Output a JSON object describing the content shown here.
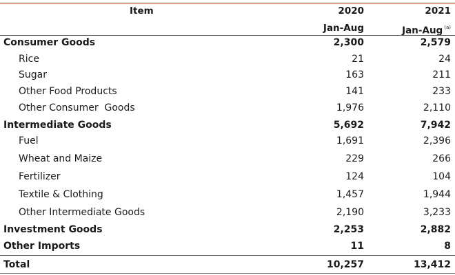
{
  "header": {
    "item_label": "Item",
    "col1_year": "2020",
    "col2_year": "2021",
    "col1_period": "Jan-Aug",
    "col2_period": "Jan-Aug",
    "col2_note": "(a)"
  },
  "rows": [
    {
      "label": "Consumer Goods",
      "v2020": "2,300",
      "v2021": "2,579",
      "bold": true
    },
    {
      "label": "Rice",
      "v2020": "21",
      "v2021": "24",
      "bold": false
    },
    {
      "label": "Sugar",
      "v2020": "163",
      "v2021": "211",
      "bold": false
    },
    {
      "label": "Other Food Products",
      "v2020": "141",
      "v2021": "233",
      "bold": false
    },
    {
      "label": "Other Consumer  Goods",
      "v2020": "1,976",
      "v2021": "2,110",
      "bold": false
    },
    {
      "label": "Intermediate Goods",
      "v2020": "5,692",
      "v2021": "7,942",
      "bold": true
    },
    {
      "label": "Fuel",
      "v2020": "1,691",
      "v2021": "2,396",
      "bold": false
    },
    {
      "label": "Wheat and Maize",
      "v2020": "229",
      "v2021": "266",
      "bold": false
    },
    {
      "label": "Fertilizer",
      "v2020": "124",
      "v2021": "104",
      "bold": false
    },
    {
      "label": "Textile & Clothing",
      "v2020": "1,457",
      "v2021": "1,944",
      "bold": false
    },
    {
      "label": "Other Intermediate Goods",
      "v2020": "2,190",
      "v2021": "3,233",
      "bold": false
    },
    {
      "label": "Investment Goods",
      "v2020": "2,253",
      "v2021": "2,882",
      "bold": true
    },
    {
      "label": "Other Imports",
      "v2020": "11",
      "v2021": "8",
      "bold": true
    },
    {
      "label": "Total",
      "v2020": "10,257",
      "v2021": "13,412",
      "bold": true
    }
  ]
}
